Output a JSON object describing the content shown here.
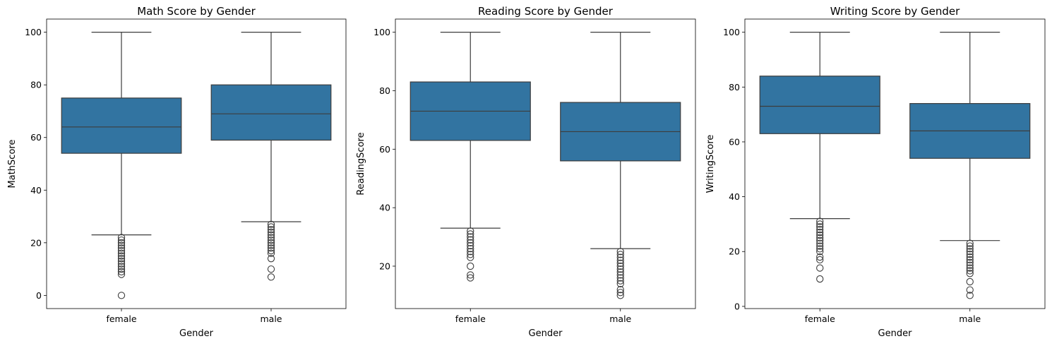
{
  "style": {
    "box_color": "#3274a1",
    "line_color": "#3d3d3d"
  },
  "chart_data": [
    {
      "type": "box",
      "title": "Math Score by Gender",
      "xlabel": "Gender",
      "ylabel": "MathScore",
      "ylim": [
        -5,
        105
      ],
      "yticks": [
        0,
        20,
        40,
        60,
        80,
        100
      ],
      "categories": [
        "female",
        "male"
      ],
      "boxes": [
        {
          "category": "female",
          "whisker_low": 23,
          "q1": 54,
          "median": 64,
          "q3": 75,
          "whisker_high": 100,
          "outliers": [
            0,
            8,
            9,
            10,
            11,
            12,
            13,
            14,
            15,
            16,
            17,
            18,
            19,
            20,
            21,
            22
          ]
        },
        {
          "category": "male",
          "whisker_low": 28,
          "q1": 59,
          "median": 69,
          "q3": 80,
          "whisker_high": 100,
          "outliers": [
            7,
            10,
            14,
            16,
            17,
            18,
            19,
            20,
            21,
            22,
            23,
            24,
            25,
            26,
            27
          ]
        }
      ]
    },
    {
      "type": "box",
      "title": "Reading Score by Gender",
      "xlabel": "Gender",
      "ylabel": "ReadingScore",
      "ylim": [
        5.5,
        104.5
      ],
      "yticks": [
        20,
        40,
        60,
        80,
        100
      ],
      "categories": [
        "female",
        "male"
      ],
      "boxes": [
        {
          "category": "female",
          "whisker_low": 33,
          "q1": 63,
          "median": 73,
          "q3": 83,
          "whisker_high": 100,
          "outliers": [
            16,
            17,
            20,
            23,
            24,
            25,
            26,
            27,
            28,
            29,
            30,
            31,
            32
          ]
        },
        {
          "category": "male",
          "whisker_low": 26,
          "q1": 56,
          "median": 66,
          "q3": 76,
          "whisker_high": 100,
          "outliers": [
            10,
            11,
            12,
            14,
            15,
            16,
            17,
            18,
            19,
            20,
            21,
            22,
            23,
            24,
            25
          ]
        }
      ]
    },
    {
      "type": "box",
      "title": "Writing Score by Gender",
      "xlabel": "Gender",
      "ylabel": "WritingScore",
      "ylim": [
        -0.8,
        104.8
      ],
      "yticks": [
        0,
        20,
        40,
        60,
        80,
        100
      ],
      "categories": [
        "female",
        "male"
      ],
      "boxes": [
        {
          "category": "female",
          "whisker_low": 32,
          "q1": 63,
          "median": 73,
          "q3": 84,
          "whisker_high": 100,
          "outliers": [
            10,
            14,
            17,
            18,
            20,
            21,
            22,
            23,
            24,
            25,
            26,
            27,
            28,
            29,
            30,
            31
          ]
        },
        {
          "category": "male",
          "whisker_low": 24,
          "q1": 54,
          "median": 64,
          "q3": 74,
          "whisker_high": 100,
          "outliers": [
            4,
            6,
            9,
            12,
            13,
            14,
            15,
            16,
            17,
            18,
            19,
            20,
            21,
            22,
            23
          ]
        }
      ]
    }
  ]
}
